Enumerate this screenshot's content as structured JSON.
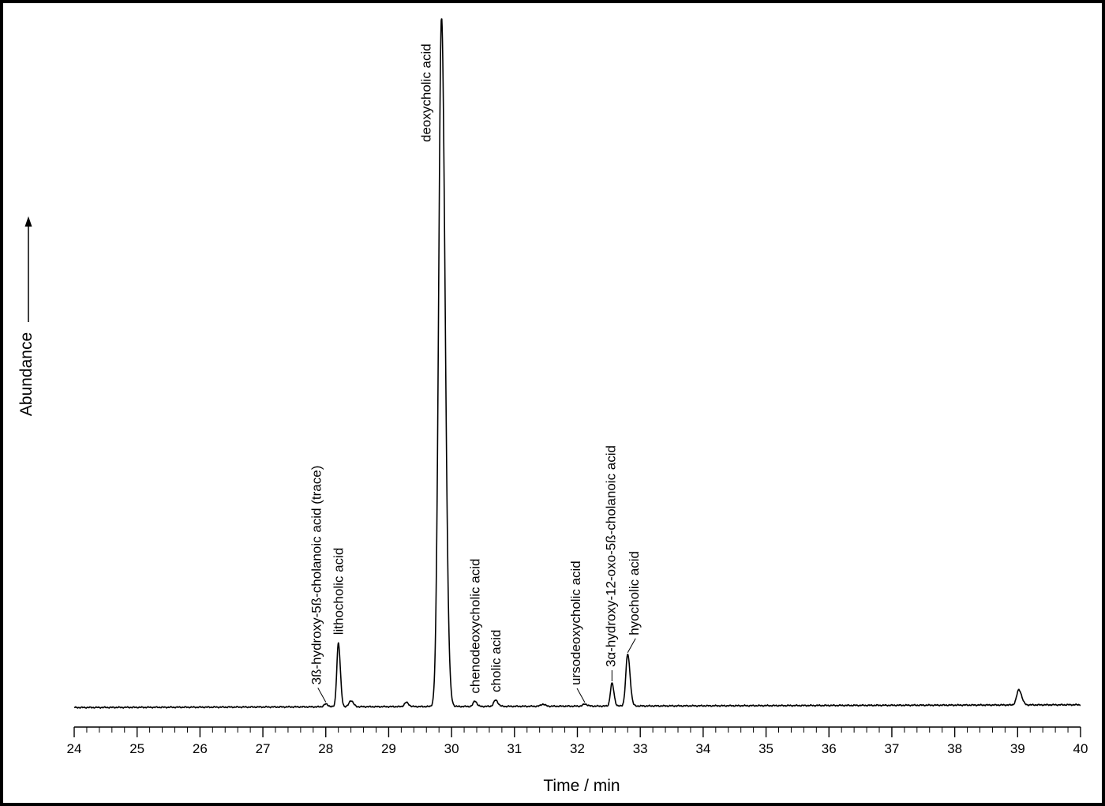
{
  "chart_data": {
    "type": "line",
    "title": "",
    "xlabel": "Time / min",
    "ylabel": "Abundance",
    "xlim": [
      24,
      40
    ],
    "ylim": [
      0,
      100
    ],
    "x_ticks": [
      "24",
      "25",
      "26",
      "27",
      "28",
      "29",
      "30",
      "31",
      "32",
      "33",
      "34",
      "35",
      "36",
      "37",
      "38",
      "39",
      "40"
    ],
    "minor_tick_step": 0.2,
    "grid": false,
    "legend": "none",
    "line_color": "#000000",
    "baseline": {
      "start": 0.2,
      "end": 0.6
    },
    "series": [
      {
        "peaks": [
          {
            "rt": 28.0,
            "height": 0.4,
            "width": 0.03
          },
          {
            "rt": 28.2,
            "height": 9.2,
            "width": 0.025
          },
          {
            "rt": 28.4,
            "height": 0.9,
            "width": 0.03
          },
          {
            "rt": 29.28,
            "height": 0.6,
            "width": 0.03
          },
          {
            "rt": 29.84,
            "height": 100,
            "width": 0.045
          },
          {
            "rt": 30.37,
            "height": 0.8,
            "width": 0.025
          },
          {
            "rt": 30.7,
            "height": 0.9,
            "width": 0.03
          },
          {
            "rt": 31.45,
            "height": 0.3,
            "width": 0.03
          },
          {
            "rt": 32.12,
            "height": 0.3,
            "width": 0.03
          },
          {
            "rt": 32.55,
            "height": 3.3,
            "width": 0.025
          },
          {
            "rt": 32.8,
            "height": 7.5,
            "width": 0.03
          },
          {
            "rt": 39.02,
            "height": 2.2,
            "width": 0.035
          }
        ]
      }
    ],
    "annotations": [
      {
        "text": "3ß-hydroxy-5ß-cholanoic acid (trace)",
        "x": 28.0,
        "y": 0.4
      },
      {
        "text": "lithocholic acid",
        "x": 28.2,
        "y": 9.2
      },
      {
        "text": "deoxycholic acid",
        "x": 29.84,
        "y": 100
      },
      {
        "text": "chenodeoxycholic acid",
        "x": 30.37,
        "y": 0.8
      },
      {
        "text": "cholic acid",
        "x": 30.7,
        "y": 0.9
      },
      {
        "text": "ursodeoxycholic acid",
        "x": 32.12,
        "y": 0.3
      },
      {
        "text": "3α-hydroxy-12-oxo-5ß-cholanoic acid",
        "x": 32.55,
        "y": 3.3
      },
      {
        "text": "hyocholic acid",
        "x": 32.8,
        "y": 7.5
      }
    ]
  }
}
